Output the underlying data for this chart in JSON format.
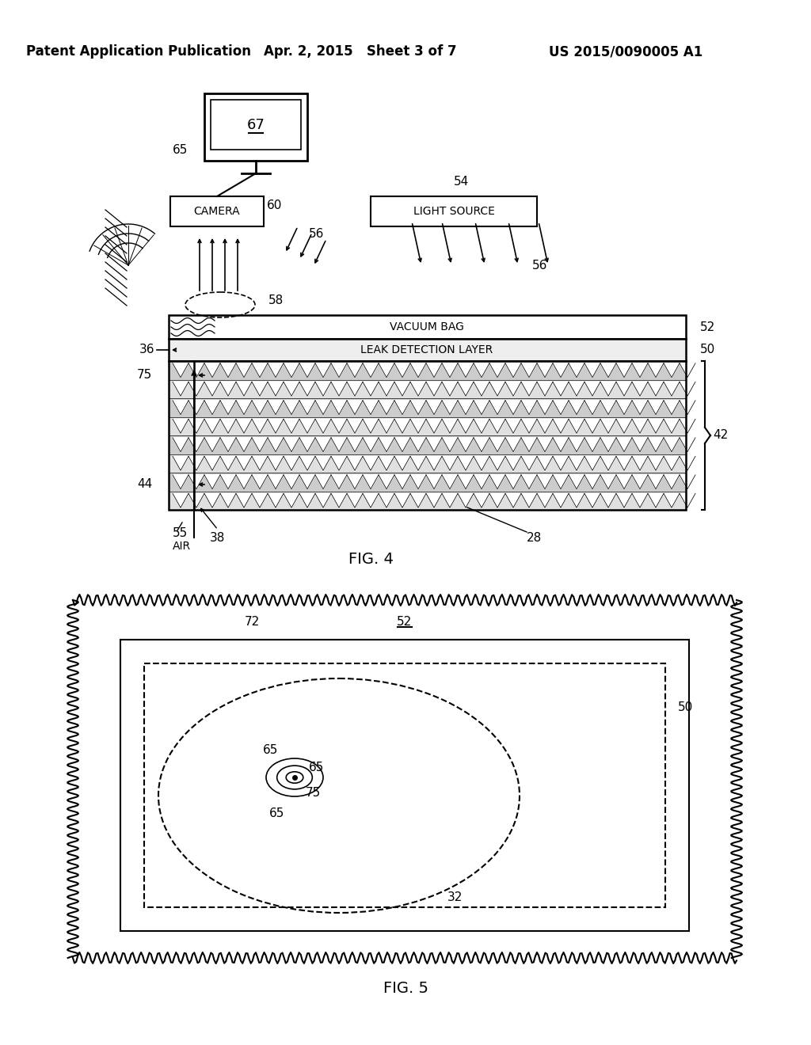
{
  "bg_color": "#ffffff",
  "header_left": "Patent Application Publication",
  "header_mid": "Apr. 2, 2015   Sheet 3 of 7",
  "header_right": "US 2015/0090005 A1",
  "fig4_caption": "FIG. 4",
  "fig5_caption": "FIG. 5",
  "labels": {
    "camera": "CAMERA",
    "light_source": "LIGHT SOURCE",
    "vacuum_bag": "VACUUM BAG",
    "leak_detection": "LEAK DETECTION LAYER",
    "air": "AIR"
  },
  "numbers": {
    "n28": "28",
    "n36": "36",
    "n38": "38",
    "n42": "42",
    "n44": "44",
    "n50": "50",
    "n52": "52",
    "n54": "54",
    "n55": "55",
    "n56": "56",
    "n58": "58",
    "n60": "60",
    "n65": "65",
    "n67": "67",
    "n72": "72",
    "n75": "75",
    "n32": "32"
  }
}
